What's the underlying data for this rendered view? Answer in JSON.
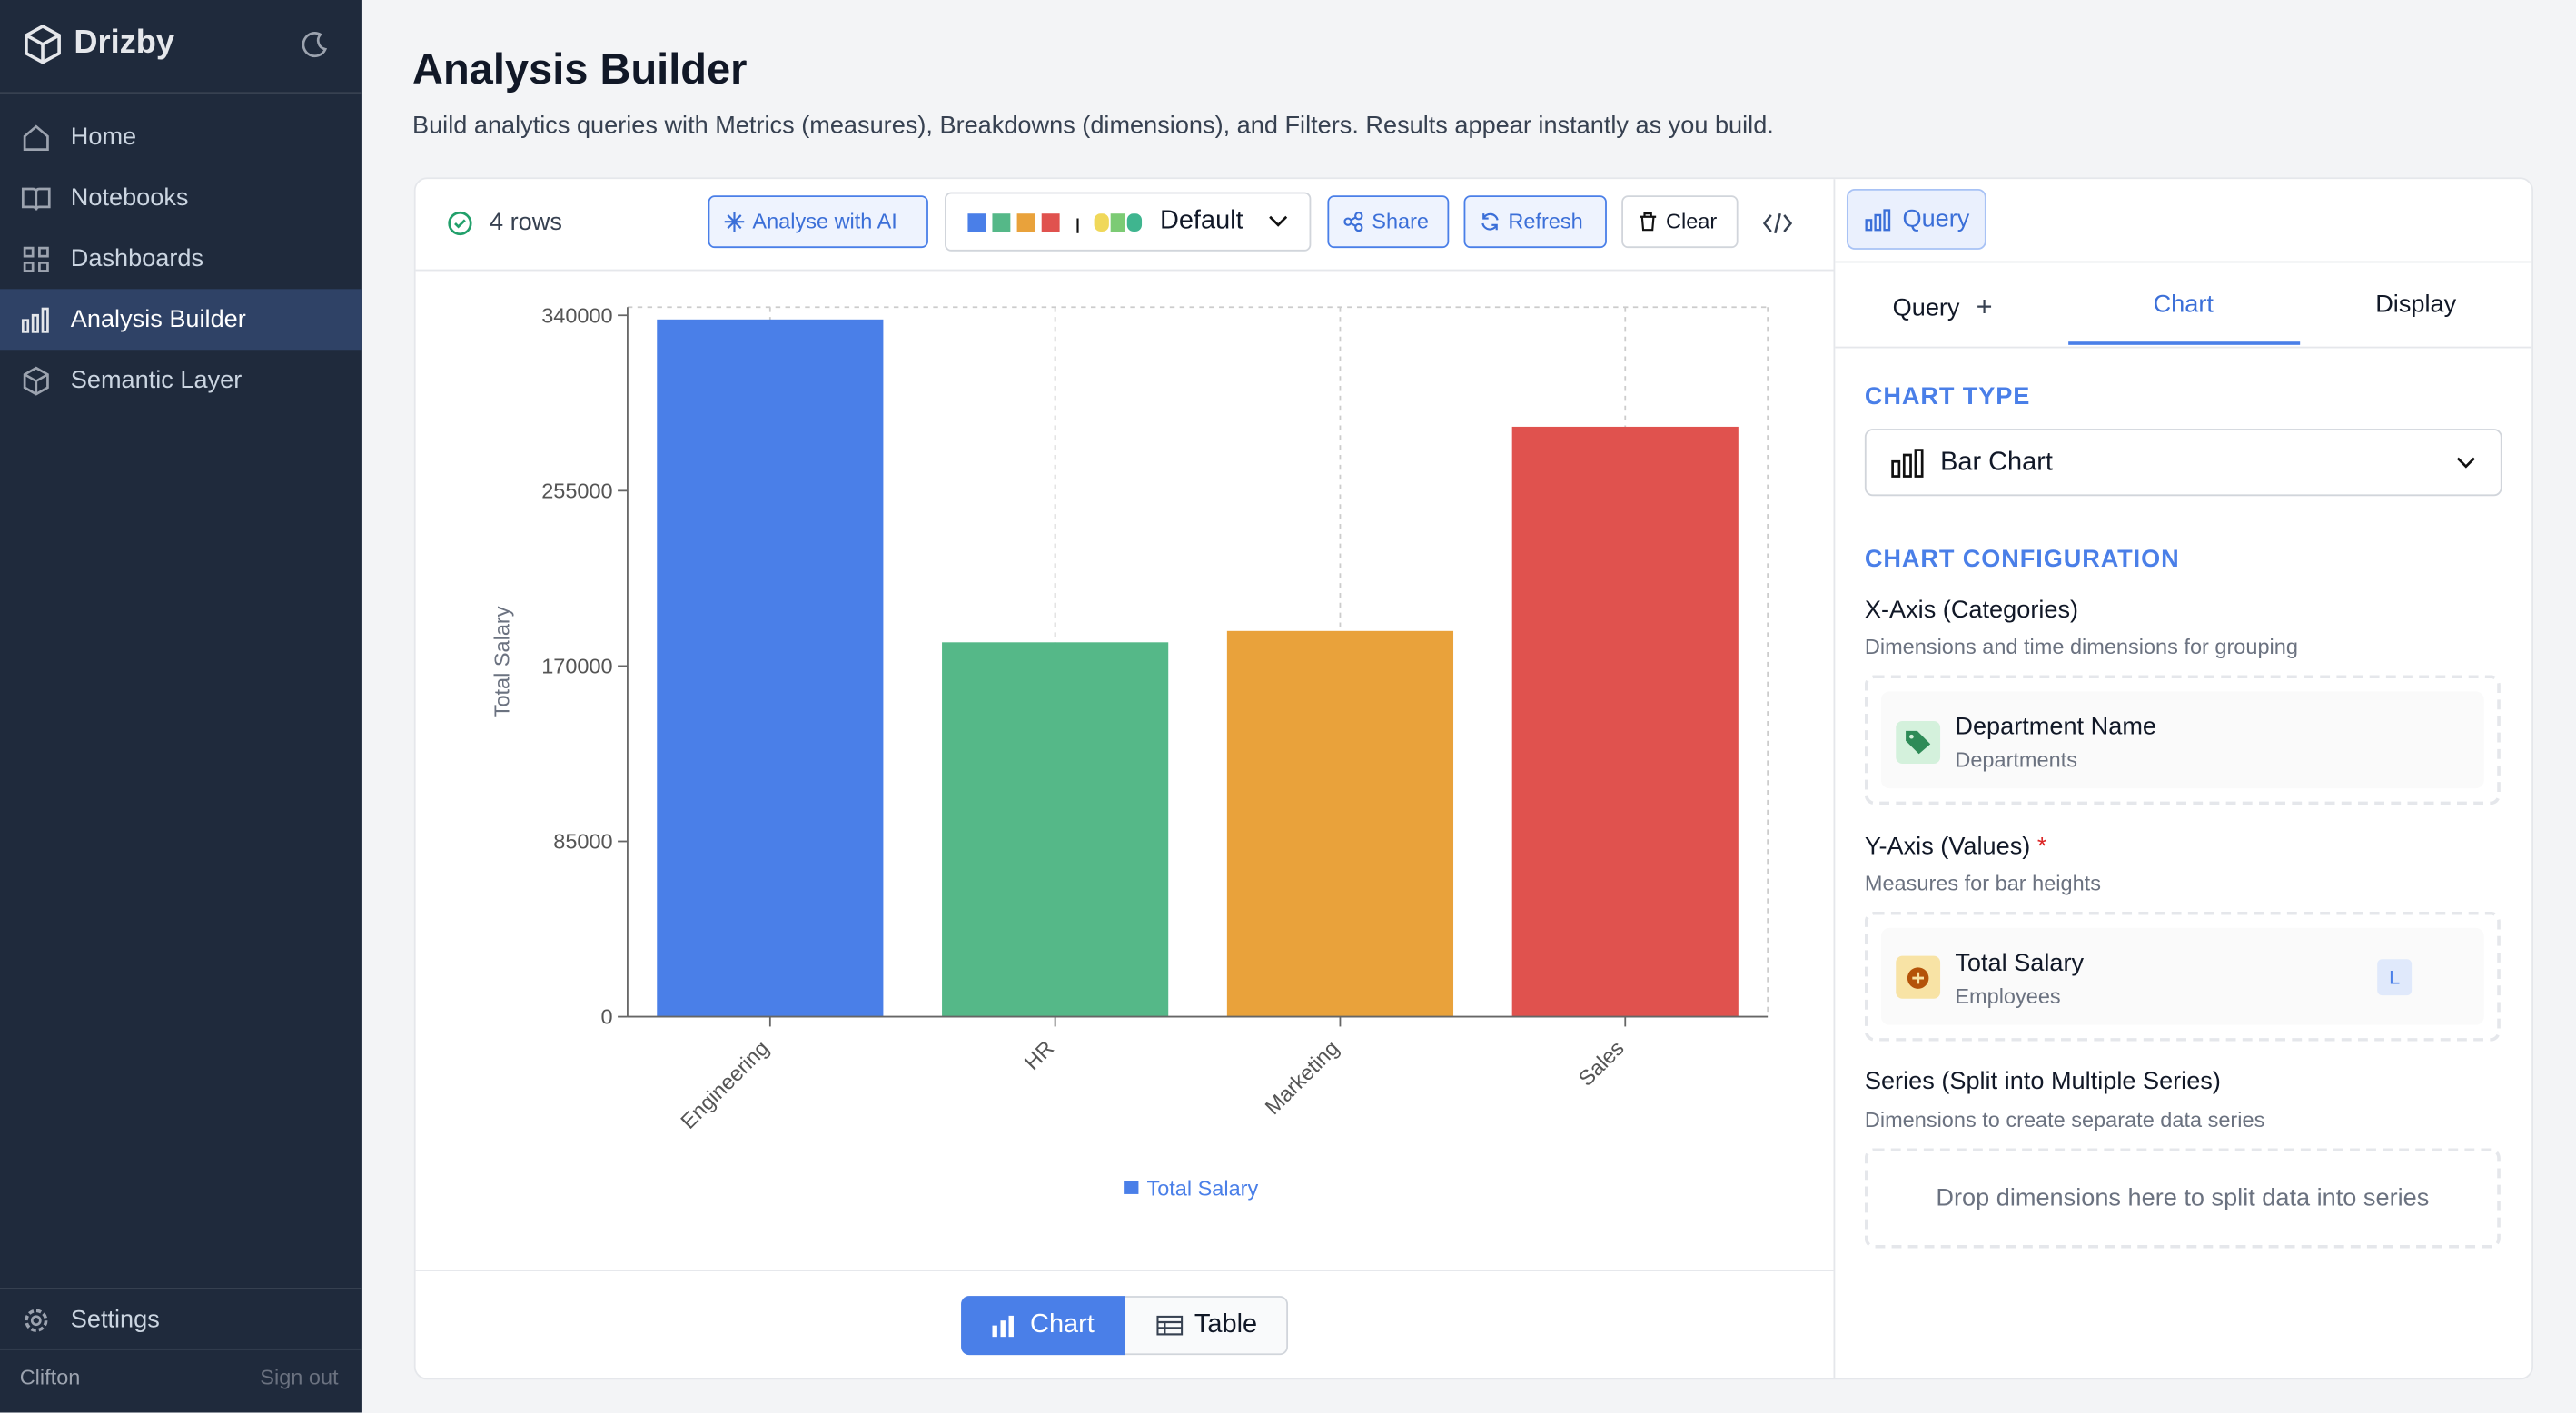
{
  "sidebar": {
    "brand": "Drizby",
    "nav": [
      "Home",
      "Notebooks",
      "Dashboards",
      "Analysis Builder",
      "Semantic Layer"
    ],
    "settings": "Settings",
    "user": "Clifton",
    "sign_out": "Sign out"
  },
  "header": {
    "title": "Analysis Builder",
    "subtitle": "Build analytics queries with Metrics (measures), Breakdowns (dimensions), and Filters. Results appear instantly as you build."
  },
  "toolbar": {
    "status": "4 rows",
    "analyse": "Analyse with AI",
    "palette": "Default",
    "share": "Share",
    "refresh": "Refresh",
    "clear": "Clear"
  },
  "chart_data": {
    "type": "bar",
    "y_label": "Total Salary",
    "categories": [
      "Engineering",
      "HR",
      "Marketing",
      "Sales"
    ],
    "series": [
      {
        "name": "Total Salary",
        "color": "#4a7fe8",
        "colors": [
          "#4a7fe8",
          "#55b888",
          "#e9a23b",
          "#e0524e"
        ],
        "values": [
          338000,
          181500,
          187000,
          286000
        ]
      }
    ],
    "ylim": [
      0,
      340000
    ],
    "yticks": [
      0,
      85000,
      170000,
      255000,
      340000
    ],
    "grid": true
  },
  "view_toggle": [
    "Chart",
    "Table"
  ],
  "panel": {
    "top_tab": "Query",
    "tabs": [
      "Query",
      "Chart",
      "Display"
    ],
    "chart_type_heading": "CHART TYPE",
    "chart_type": "Bar Chart",
    "config_heading": "CHART CONFIGURATION",
    "x_axis": {
      "title": "X-Axis (Categories)",
      "hint": "Dimensions and time dimensions for grouping",
      "field": "Department Name",
      "source": "Departments"
    },
    "y_axis": {
      "title": "Y-Axis (Values)",
      "required": "*",
      "hint": "Measures for bar heights",
      "field": "Total Salary",
      "source": "Employees",
      "badge": "L"
    },
    "series": {
      "title": "Series (Split into Multiple Series)",
      "hint": "Dimensions to create separate data series",
      "placeholder": "Drop dimensions here to split data into series"
    }
  }
}
